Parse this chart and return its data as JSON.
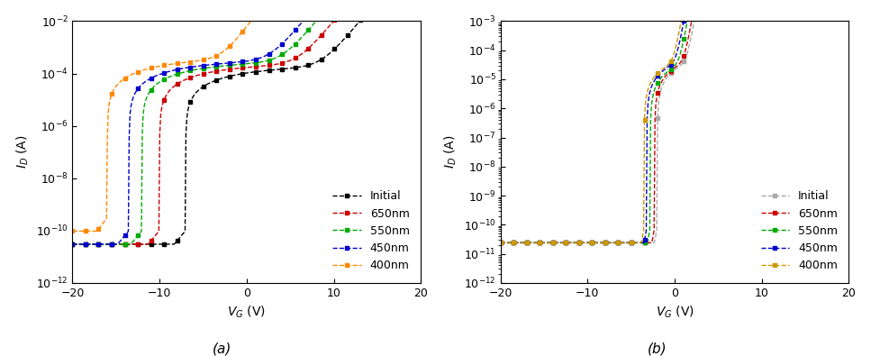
{
  "plot_a": {
    "title": "(a)",
    "xlabel": "V_G (V)",
    "ylabel": "I_D (A)",
    "xlim": [
      -20,
      20
    ],
    "ylim_log": [
      -12,
      -2
    ],
    "series": [
      {
        "label": "Initial",
        "color": "#000000",
        "vth": -7.0,
        "off_current_log": -10.0,
        "ss_mv_dec": 2.5,
        "on_current": 0.00012
      },
      {
        "label": "650nm",
        "color": "#cc0000",
        "vth": -10.0,
        "off_current_log": -10.0,
        "ss_mv_dec": 2.5,
        "on_current": 0.00015
      },
      {
        "label": "550nm",
        "color": "#00aa00",
        "vth": -12.0,
        "off_current_log": -10.0,
        "ss_mv_dec": 2.5,
        "on_current": 0.00018
      },
      {
        "label": "450nm",
        "color": "#0000cc",
        "vth": -13.5,
        "off_current_log": -10.0,
        "ss_mv_dec": 2.5,
        "on_current": 0.0002
      },
      {
        "label": "400nm",
        "color": "#ff8800",
        "vth": -16.0,
        "off_current_log": -9.5,
        "ss_mv_dec": 2.2,
        "on_current": 0.00025
      }
    ]
  },
  "plot_b": {
    "title": "(b)",
    "xlabel": "V_G (V)",
    "ylabel": "I_D (A)",
    "xlim": [
      -20,
      20
    ],
    "ylim_log": [
      -12,
      -3
    ],
    "series": [
      {
        "label": "Initial",
        "color": "#aaaaaa",
        "vth": -2.0,
        "off_current_log": -10.1,
        "ss_mv_dec": 0.6,
        "on_current": 8e-05
      },
      {
        "label": "650nm",
        "color": "#cc0000",
        "vth": -2.3,
        "off_current_log": -10.1,
        "ss_mv_dec": 0.6,
        "on_current": 8e-05
      },
      {
        "label": "550nm",
        "color": "#00aa00",
        "vth": -2.8,
        "off_current_log": -10.1,
        "ss_mv_dec": 0.6,
        "on_current": 7e-05
      },
      {
        "label": "450nm",
        "color": "#0000cc",
        "vth": -3.2,
        "off_current_log": -10.1,
        "ss_mv_dec": 0.6,
        "on_current": 8e-05
      },
      {
        "label": "400nm",
        "color": "#cc9900",
        "vth": -3.5,
        "off_current_log": -10.1,
        "ss_mv_dec": 0.6,
        "on_current": 8e-05
      }
    ]
  },
  "marker": "s",
  "markersize": 3.5,
  "linewidth": 1.0,
  "linestyle": "--",
  "legend_fontsize": 9,
  "axis_fontsize": 10,
  "tick_fontsize": 9,
  "n_points": 400,
  "markevery": 15
}
